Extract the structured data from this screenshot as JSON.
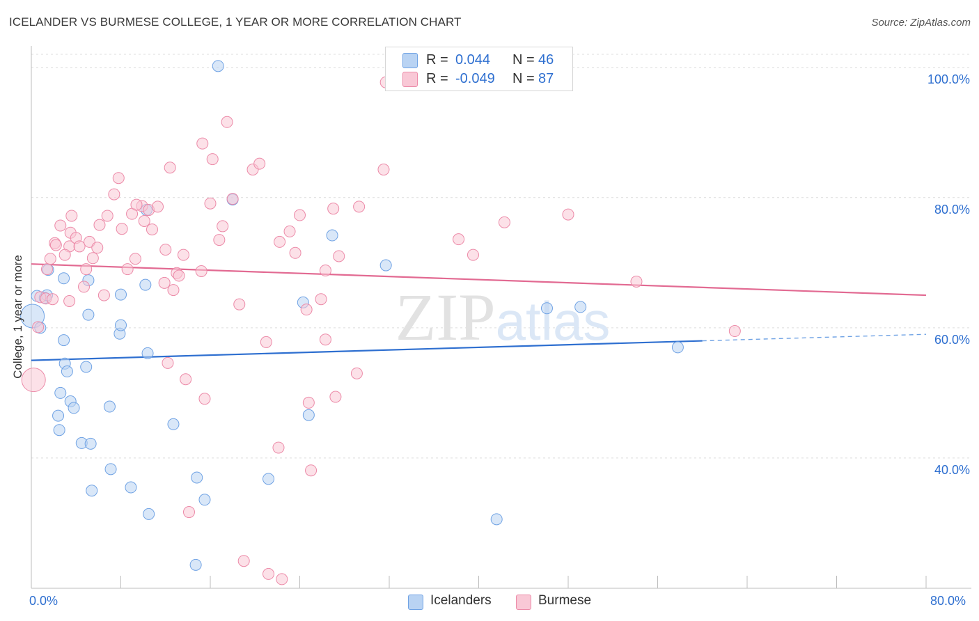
{
  "title": "ICELANDER VS BURMESE COLLEGE, 1 YEAR OR MORE CORRELATION CHART",
  "source": "Source: ZipAtlas.com",
  "watermark": "ZIPatlas",
  "legend": {
    "rows": [
      {
        "r_label": "R =",
        "r_value": "0.044",
        "n_label": "N =",
        "n_value": "46",
        "color": "#a8c8f0"
      },
      {
        "r_label": "R =",
        "r_value": "-0.049",
        "n_label": "N =",
        "n_value": "87",
        "color": "#f7b6c8"
      }
    ]
  },
  "bottom_legend": [
    {
      "label": "Icelanders",
      "color": "#a8c8f0"
    },
    {
      "label": "Burmese",
      "color": "#f7b6c8"
    }
  ],
  "chart_data": {
    "type": "scatter",
    "title": "ICELANDER VS BURMESE COLLEGE, 1 YEAR OR MORE CORRELATION CHART",
    "xlabel": "",
    "ylabel": "College, 1 year or more",
    "xlim": [
      0,
      80
    ],
    "ylim": [
      20,
      102
    ],
    "x_tick_labels": [
      "0.0%",
      "80.0%"
    ],
    "y_ticks": [
      40,
      60,
      80,
      100
    ],
    "y_tick_labels": [
      "40.0%",
      "60.0%",
      "80.0%",
      "100.0%"
    ],
    "series": [
      {
        "name": "Icelanders",
        "color": "#6fa2e4",
        "fill": "#b9d3f3",
        "trend": {
          "x0": 0,
          "y0": 55.0,
          "x1": 60,
          "y1": 58.0,
          "dashed_to_x": 80,
          "dashed_to_y": 59.0
        },
        "points": [
          [
            16.7,
            100.2
          ],
          [
            0.5,
            64.9
          ],
          [
            1.2,
            64.6
          ],
          [
            1.4,
            65.0
          ],
          [
            1.5,
            68.9
          ],
          [
            0.1,
            61.8
          ],
          [
            0.8,
            60.0
          ],
          [
            2.9,
            67.6
          ],
          [
            5.1,
            62.0
          ],
          [
            8.0,
            65.1
          ],
          [
            10.3,
            78.1
          ],
          [
            10.2,
            66.6
          ],
          [
            5.1,
            67.3
          ],
          [
            7.9,
            59.1
          ],
          [
            8.0,
            60.4
          ],
          [
            10.4,
            56.1
          ],
          [
            4.9,
            54.0
          ],
          [
            3.0,
            54.5
          ],
          [
            3.2,
            53.3
          ],
          [
            2.9,
            58.1
          ],
          [
            2.6,
            50.0
          ],
          [
            3.5,
            48.7
          ],
          [
            3.8,
            47.7
          ],
          [
            2.4,
            46.5
          ],
          [
            2.5,
            44.3
          ],
          [
            4.5,
            42.3
          ],
          [
            5.3,
            42.2
          ],
          [
            7.0,
            47.9
          ],
          [
            12.7,
            45.2
          ],
          [
            7.1,
            38.3
          ],
          [
            14.8,
            37.0
          ],
          [
            8.9,
            35.5
          ],
          [
            5.4,
            35.0
          ],
          [
            15.5,
            33.6
          ],
          [
            10.5,
            31.4
          ],
          [
            24.8,
            46.6
          ],
          [
            24.3,
            63.9
          ],
          [
            26.9,
            74.2
          ],
          [
            31.7,
            69.6
          ],
          [
            21.2,
            36.8
          ],
          [
            41.6,
            30.6
          ],
          [
            18.0,
            79.7
          ],
          [
            46.1,
            63.0
          ],
          [
            49.1,
            63.2
          ],
          [
            57.8,
            57.0
          ],
          [
            14.7,
            23.6
          ]
        ]
      },
      {
        "name": "Burmese",
        "color": "#ec8aa8",
        "fill": "#f9c8d6",
        "trend": {
          "x0": 0,
          "y0": 69.8,
          "x1": 80,
          "y1": 65.0
        },
        "points": [
          [
            0.2,
            52.0
          ],
          [
            0.6,
            60.1
          ],
          [
            0.8,
            64.7
          ],
          [
            1.3,
            64.5
          ],
          [
            1.4,
            69.0
          ],
          [
            1.7,
            70.6
          ],
          [
            2.1,
            73.0
          ],
          [
            2.6,
            75.7
          ],
          [
            2.2,
            72.7
          ],
          [
            3.4,
            72.5
          ],
          [
            3.0,
            71.2
          ],
          [
            3.5,
            74.6
          ],
          [
            3.6,
            77.2
          ],
          [
            4.0,
            73.8
          ],
          [
            4.3,
            72.5
          ],
          [
            4.7,
            66.3
          ],
          [
            4.9,
            69.0
          ],
          [
            5.2,
            73.2
          ],
          [
            5.5,
            70.7
          ],
          [
            5.9,
            72.3
          ],
          [
            6.1,
            75.8
          ],
          [
            6.5,
            65.0
          ],
          [
            6.8,
            77.2
          ],
          [
            7.4,
            80.5
          ],
          [
            7.8,
            83.0
          ],
          [
            8.1,
            75.2
          ],
          [
            8.6,
            69.0
          ],
          [
            9.0,
            77.5
          ],
          [
            9.3,
            70.6
          ],
          [
            9.9,
            78.7
          ],
          [
            10.1,
            76.4
          ],
          [
            10.5,
            78.1
          ],
          [
            10.8,
            75.1
          ],
          [
            11.3,
            78.6
          ],
          [
            12.0,
            72.0
          ],
          [
            12.4,
            84.6
          ],
          [
            11.9,
            66.9
          ],
          [
            12.2,
            54.6
          ],
          [
            12.7,
            65.8
          ],
          [
            13.0,
            68.4
          ],
          [
            13.2,
            68.0
          ],
          [
            13.6,
            71.2
          ],
          [
            13.8,
            52.1
          ],
          [
            14.1,
            31.7
          ],
          [
            15.2,
            68.7
          ],
          [
            15.3,
            88.3
          ],
          [
            15.5,
            49.1
          ],
          [
            16.0,
            79.1
          ],
          [
            16.2,
            85.9
          ],
          [
            16.8,
            73.5
          ],
          [
            17.1,
            75.6
          ],
          [
            17.5,
            91.6
          ],
          [
            18.0,
            79.8
          ],
          [
            18.6,
            63.6
          ],
          [
            19.0,
            24.2
          ],
          [
            19.8,
            84.3
          ],
          [
            20.4,
            85.2
          ],
          [
            21.0,
            57.8
          ],
          [
            21.2,
            22.2
          ],
          [
            22.1,
            41.6
          ],
          [
            22.2,
            73.2
          ],
          [
            22.4,
            21.4
          ],
          [
            23.1,
            74.8
          ],
          [
            23.6,
            71.5
          ],
          [
            24.6,
            62.8
          ],
          [
            24.0,
            77.3
          ],
          [
            24.8,
            48.5
          ],
          [
            25.0,
            38.1
          ],
          [
            25.9,
            64.4
          ],
          [
            26.3,
            68.8
          ],
          [
            26.3,
            58.2
          ],
          [
            27.0,
            78.3
          ],
          [
            27.2,
            49.4
          ],
          [
            27.5,
            71.0
          ],
          [
            29.1,
            53.0
          ],
          [
            29.3,
            78.6
          ],
          [
            31.5,
            84.3
          ],
          [
            31.7,
            97.7
          ],
          [
            38.2,
            73.6
          ],
          [
            39.5,
            71.2
          ],
          [
            48.0,
            77.4
          ],
          [
            54.1,
            67.1
          ],
          [
            62.9,
            59.5
          ],
          [
            42.3,
            76.2
          ],
          [
            3.4,
            64.1
          ],
          [
            1.9,
            64.4
          ],
          [
            9.4,
            78.9
          ]
        ]
      }
    ]
  }
}
